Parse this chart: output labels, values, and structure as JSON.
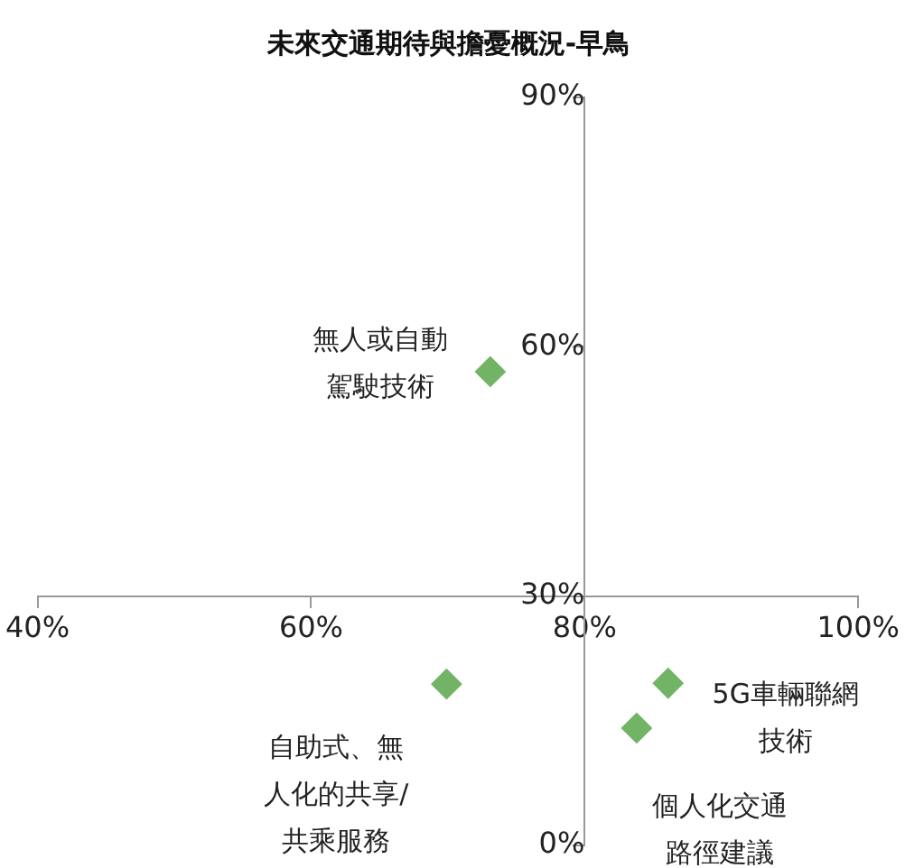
{
  "chart_data": {
    "type": "scatter",
    "title": "未來交通期待與擔憂概況-早鳥",
    "x": [
      73.1,
      69.9,
      86.1,
      83.8
    ],
    "values": [
      57.0,
      19.4,
      19.5,
      14.1
    ],
    "color": "#72b466",
    "marker": "diamond",
    "xlim": [
      40,
      100
    ],
    "xticks": [
      {
        "value": 40,
        "label": "40%"
      },
      {
        "value": 60,
        "label": "60%"
      },
      {
        "value": 80,
        "label": "80%"
      },
      {
        "value": 100,
        "label": "100%"
      }
    ],
    "ylim": [
      0,
      90
    ],
    "yticks": [
      {
        "value": 0,
        "label": "0%"
      },
      {
        "value": 30,
        "label": "30%"
      },
      {
        "value": 60,
        "label": "60%"
      },
      {
        "value": 90,
        "label": "90%"
      }
    ],
    "annotations": [
      {
        "text": "無人或自動駕駛技術",
        "x": 73.1,
        "y": 57.0
      },
      {
        "text": "自助式、無人化的共享/共乘服務",
        "x": 69.9,
        "y": 19.4
      },
      {
        "text": "5G車輛聯網技術",
        "x": 86.1,
        "y": 19.5
      },
      {
        "text": "個人化交通路徑建議",
        "x": 83.8,
        "y": 14.1
      }
    ]
  }
}
